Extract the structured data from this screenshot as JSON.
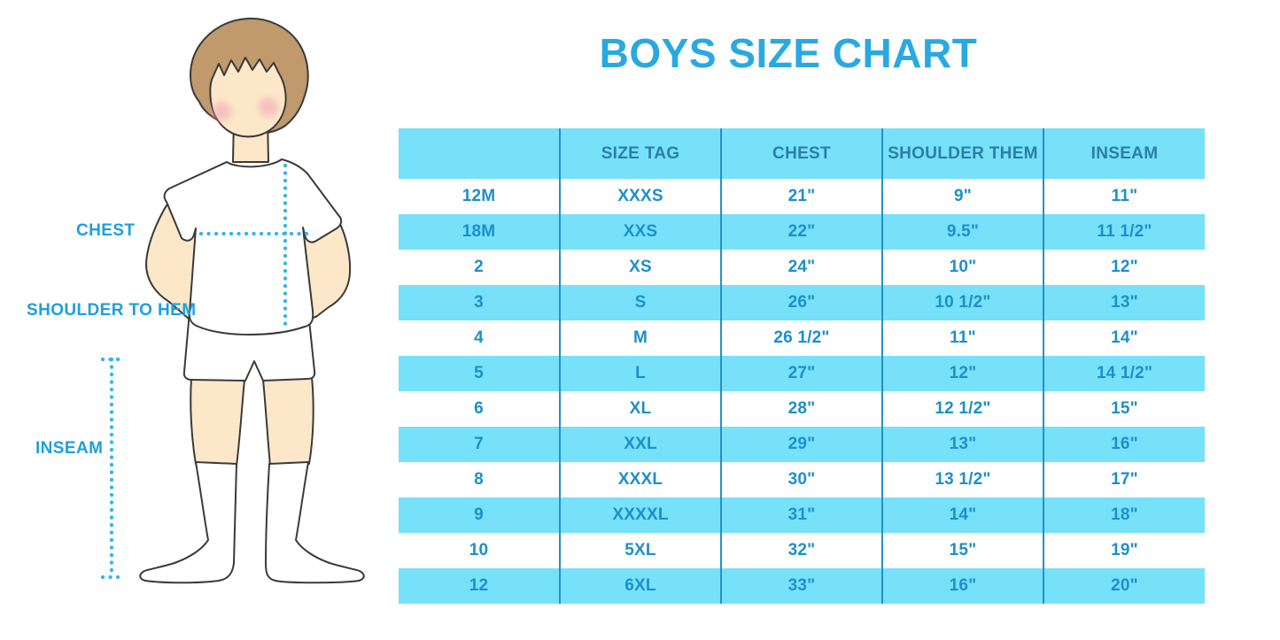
{
  "chart_data": {
    "type": "table",
    "title": "BOYS SIZE CHART",
    "columns": [
      "",
      "SIZE TAG",
      "CHEST",
      "SHOULDER THEM",
      "INSEAM"
    ],
    "rows": [
      [
        "12M",
        "XXXS",
        "21\"",
        "9\"",
        "11\""
      ],
      [
        "18M",
        "XXS",
        "22\"",
        "9.5\"",
        "11 1/2\""
      ],
      [
        "2",
        "XS",
        "24\"",
        "10\"",
        "12\""
      ],
      [
        "3",
        "S",
        "26\"",
        "10 1/2\"",
        "13\""
      ],
      [
        "4",
        "M",
        "26 1/2\"",
        "11\"",
        "14\""
      ],
      [
        "5",
        "L",
        "27\"",
        "12\"",
        "14 1/2\""
      ],
      [
        "6",
        "XL",
        "28\"",
        "12 1/2\"",
        "15\""
      ],
      [
        "7",
        "XXL",
        "29\"",
        "13\"",
        "16\""
      ],
      [
        "8",
        "XXXL",
        "30\"",
        "13 1/2\"",
        "17\""
      ],
      [
        "9",
        "XXXXL",
        "31\"",
        "14\"",
        "18\""
      ],
      [
        "10",
        "5XL",
        "32\"",
        "15\"",
        "19\""
      ],
      [
        "12",
        "6XL",
        "33\"",
        "16\"",
        "20\""
      ]
    ]
  },
  "figure_labels": {
    "chest": "CHEST",
    "shoulder_to_hem": "SHOULDER TO HEM",
    "inseam": "INSEAM"
  },
  "colors": {
    "accent": "#29A9E1",
    "stripe": "#76E1F9",
    "divider": "#2491C6",
    "header_text": "#2A7FA8",
    "cell_text": "#1D8FCB",
    "label_text": "#1E9FDE",
    "dotted_line": "#2FB6EC",
    "skin": "#FCE8C8",
    "hair": "#C0996C",
    "cheek": "#F2A6B8",
    "outline": "#3A3A3A",
    "background": "#FFFFFF"
  }
}
